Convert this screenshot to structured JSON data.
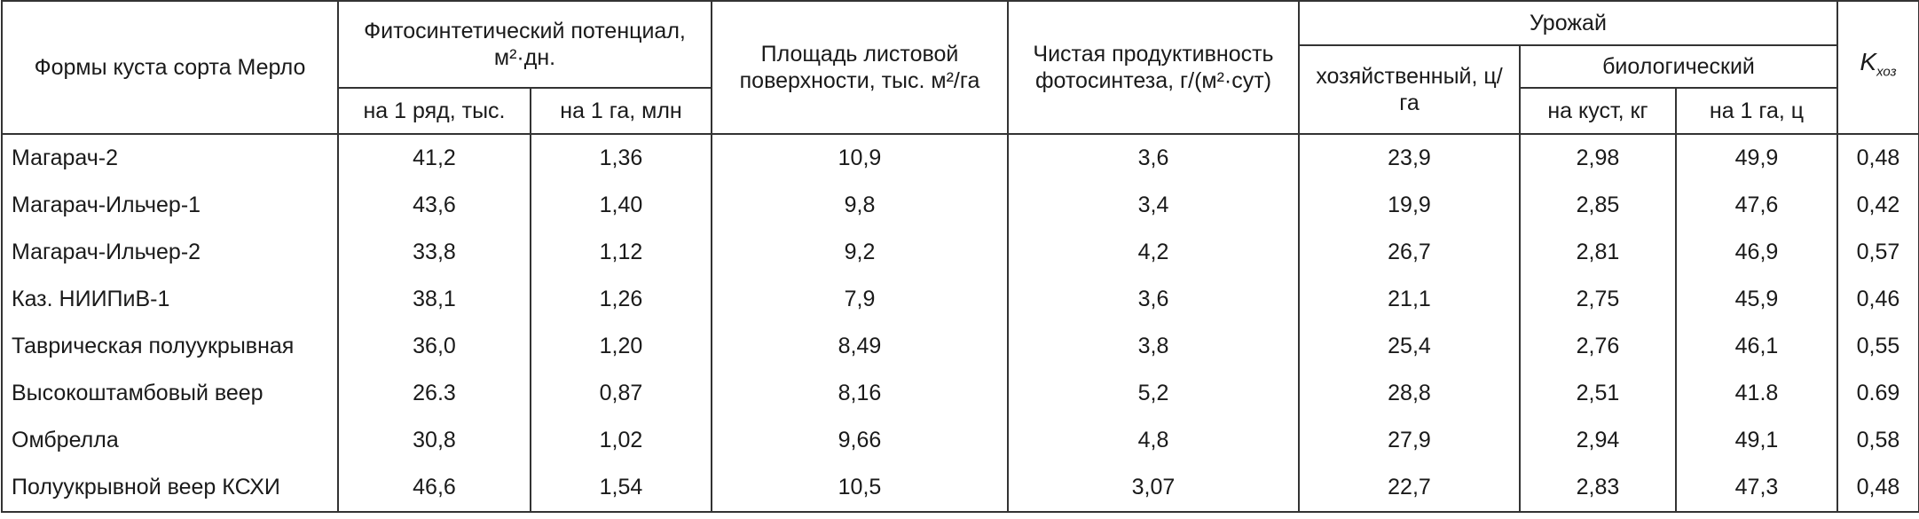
{
  "table": {
    "header": {
      "form": "Формы куста сорта Мерло",
      "potential": "Фитосинтетический потенциал, м²·дн.",
      "per_row": "на 1 ряд, тыс.",
      "per_ha": "на 1 га, млн",
      "leaf_area": "Площадь листовой поверхности, тыс. м²/га",
      "productivity": "Чистая продуктивность фотосинтеза, г/(м²·сут)",
      "harvest": "Урожай",
      "economic": "хозяйственный, ц/га",
      "biological": "биологический",
      "per_bush": "на куст, кг",
      "per_ha_c": "на 1 га, ц",
      "k_symbol": "K",
      "k_sub": "хоз"
    },
    "rows": [
      [
        "Магарач-2",
        "41,2",
        "1,36",
        "10,9",
        "3,6",
        "23,9",
        "2,98",
        "49,9",
        "0,48"
      ],
      [
        "Магарач-Ильчер-1",
        "43,6",
        "1,40",
        "9,8",
        "3,4",
        "19,9",
        "2,85",
        "47,6",
        "0,42"
      ],
      [
        "Магарач-Ильчер-2",
        "33,8",
        "1,12",
        "9,2",
        "4,2",
        "26,7",
        "2,81",
        "46,9",
        "0,57"
      ],
      [
        "Каз. НИИПиВ-1",
        "38,1",
        "1,26",
        "7,9",
        "3,6",
        "21,1",
        "2,75",
        "45,9",
        "0,46"
      ],
      [
        "Таврическая полуукрывная",
        "36,0",
        "1,20",
        "8,49",
        "3,8",
        "25,4",
        "2,76",
        "46,1",
        "0,55"
      ],
      [
        "Высокоштамбовый веер",
        "26.3",
        "0,87",
        "8,16",
        "5,2",
        "28,8",
        "2,51",
        "41.8",
        "0.69"
      ],
      [
        "Омбрелла",
        "30,8",
        "1,02",
        "9,66",
        "4,8",
        "27,9",
        "2,94",
        "49,1",
        "0,58"
      ],
      [
        "Полуукрывной веер КСХИ",
        "46,6",
        "1,54",
        "10,5",
        "3,07",
        "22,7",
        "2,83",
        "47,3",
        "0,48"
      ]
    ]
  }
}
